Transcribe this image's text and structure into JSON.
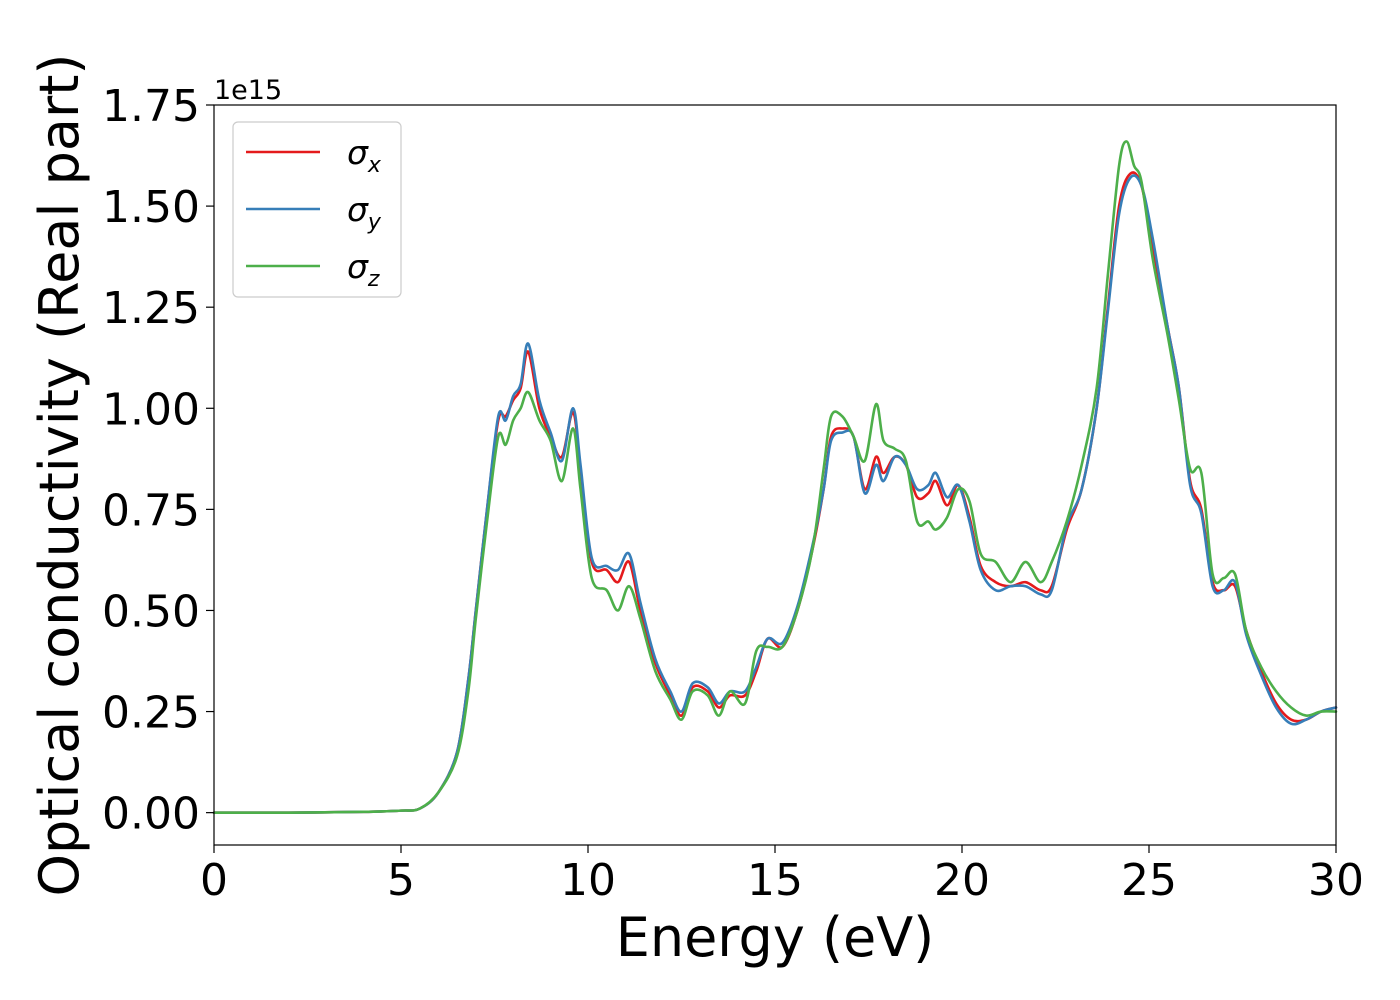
{
  "chart_data": {
    "type": "line",
    "title": "",
    "xlabel": "Energy (eV)",
    "ylabel": "Optical conductivity (Real part)",
    "y_offset_label": "1e15",
    "xlim": [
      0,
      30
    ],
    "ylim": [
      -0.08,
      1.75
    ],
    "xticks": [
      0,
      5,
      10,
      15,
      20,
      25,
      30
    ],
    "xtick_labels": [
      "0",
      "5",
      "10",
      "15",
      "20",
      "25",
      "30"
    ],
    "yticks": [
      0.0,
      0.25,
      0.5,
      0.75,
      1.0,
      1.25,
      1.5,
      1.75
    ],
    "ytick_labels": [
      "0.00",
      "0.25",
      "0.50",
      "0.75",
      "1.00",
      "1.25",
      "1.50",
      "1.75"
    ],
    "grid": false,
    "legend_position": "upper-left",
    "series": [
      {
        "name": "σx",
        "legend_base": "σ",
        "legend_sub": "x",
        "color": "#e41a1c",
        "points": [
          [
            0,
            0
          ],
          [
            2,
            0
          ],
          [
            4,
            0.002
          ],
          [
            5,
            0.005
          ],
          [
            5.5,
            0.01
          ],
          [
            6,
            0.05
          ],
          [
            6.5,
            0.15
          ],
          [
            6.8,
            0.33
          ],
          [
            7,
            0.5
          ],
          [
            7.3,
            0.75
          ],
          [
            7.6,
            0.97
          ],
          [
            7.8,
            0.98
          ],
          [
            8,
            1.02
          ],
          [
            8.2,
            1.05
          ],
          [
            8.4,
            1.14
          ],
          [
            8.7,
            1.0
          ],
          [
            9,
            0.93
          ],
          [
            9.3,
            0.88
          ],
          [
            9.6,
            0.99
          ],
          [
            9.8,
            0.85
          ],
          [
            10.1,
            0.62
          ],
          [
            10.5,
            0.6
          ],
          [
            10.8,
            0.57
          ],
          [
            11.1,
            0.62
          ],
          [
            11.4,
            0.5
          ],
          [
            11.8,
            0.37
          ],
          [
            12.2,
            0.29
          ],
          [
            12.5,
            0.24
          ],
          [
            12.8,
            0.31
          ],
          [
            13.2,
            0.3
          ],
          [
            13.5,
            0.26
          ],
          [
            13.8,
            0.29
          ],
          [
            14.2,
            0.29
          ],
          [
            14.5,
            0.35
          ],
          [
            14.8,
            0.43
          ],
          [
            15.2,
            0.41
          ],
          [
            15.6,
            0.5
          ],
          [
            16,
            0.65
          ],
          [
            16.3,
            0.8
          ],
          [
            16.5,
            0.93
          ],
          [
            16.8,
            0.95
          ],
          [
            17.1,
            0.93
          ],
          [
            17.4,
            0.8
          ],
          [
            17.7,
            0.88
          ],
          [
            17.9,
            0.84
          ],
          [
            18.2,
            0.88
          ],
          [
            18.5,
            0.86
          ],
          [
            18.8,
            0.78
          ],
          [
            19.1,
            0.79
          ],
          [
            19.3,
            0.82
          ],
          [
            19.6,
            0.76
          ],
          [
            19.9,
            0.81
          ],
          [
            20.2,
            0.73
          ],
          [
            20.5,
            0.61
          ],
          [
            20.9,
            0.57
          ],
          [
            21.3,
            0.56
          ],
          [
            21.7,
            0.57
          ],
          [
            22.1,
            0.55
          ],
          [
            22.4,
            0.56
          ],
          [
            22.8,
            0.7
          ],
          [
            23.2,
            0.8
          ],
          [
            23.6,
            1.0
          ],
          [
            23.9,
            1.25
          ],
          [
            24.2,
            1.5
          ],
          [
            24.5,
            1.58
          ],
          [
            24.8,
            1.55
          ],
          [
            25.1,
            1.4
          ],
          [
            25.5,
            1.2
          ],
          [
            25.8,
            1.05
          ],
          [
            26.1,
            0.82
          ],
          [
            26.4,
            0.75
          ],
          [
            26.7,
            0.57
          ],
          [
            27,
            0.55
          ],
          [
            27.3,
            0.56
          ],
          [
            27.6,
            0.45
          ],
          [
            28,
            0.35
          ],
          [
            28.4,
            0.27
          ],
          [
            28.8,
            0.23
          ],
          [
            29.2,
            0.23
          ],
          [
            29.6,
            0.25
          ],
          [
            30,
            0.26
          ]
        ]
      },
      {
        "name": "σy",
        "legend_base": "σ",
        "legend_sub": "y",
        "color": "#377eb8",
        "points": [
          [
            0,
            0
          ],
          [
            2,
            0
          ],
          [
            4,
            0.002
          ],
          [
            5,
            0.005
          ],
          [
            5.5,
            0.01
          ],
          [
            6,
            0.05
          ],
          [
            6.5,
            0.15
          ],
          [
            6.8,
            0.33
          ],
          [
            7,
            0.5
          ],
          [
            7.3,
            0.75
          ],
          [
            7.6,
            0.98
          ],
          [
            7.8,
            0.97
          ],
          [
            8,
            1.03
          ],
          [
            8.2,
            1.06
          ],
          [
            8.4,
            1.16
          ],
          [
            8.7,
            1.02
          ],
          [
            9,
            0.94
          ],
          [
            9.3,
            0.87
          ],
          [
            9.6,
            1.0
          ],
          [
            9.8,
            0.86
          ],
          [
            10.1,
            0.63
          ],
          [
            10.5,
            0.61
          ],
          [
            10.8,
            0.6
          ],
          [
            11.1,
            0.64
          ],
          [
            11.4,
            0.52
          ],
          [
            11.8,
            0.38
          ],
          [
            12.2,
            0.3
          ],
          [
            12.5,
            0.25
          ],
          [
            12.8,
            0.32
          ],
          [
            13.2,
            0.31
          ],
          [
            13.5,
            0.27
          ],
          [
            13.8,
            0.3
          ],
          [
            14.2,
            0.3
          ],
          [
            14.5,
            0.36
          ],
          [
            14.8,
            0.43
          ],
          [
            15.2,
            0.42
          ],
          [
            15.6,
            0.51
          ],
          [
            16,
            0.66
          ],
          [
            16.3,
            0.8
          ],
          [
            16.5,
            0.92
          ],
          [
            16.8,
            0.94
          ],
          [
            17.1,
            0.93
          ],
          [
            17.4,
            0.79
          ],
          [
            17.7,
            0.86
          ],
          [
            17.9,
            0.82
          ],
          [
            18.2,
            0.88
          ],
          [
            18.5,
            0.86
          ],
          [
            18.8,
            0.8
          ],
          [
            19.1,
            0.81
          ],
          [
            19.3,
            0.84
          ],
          [
            19.6,
            0.78
          ],
          [
            19.9,
            0.81
          ],
          [
            20.2,
            0.72
          ],
          [
            20.5,
            0.6
          ],
          [
            20.9,
            0.55
          ],
          [
            21.3,
            0.56
          ],
          [
            21.7,
            0.56
          ],
          [
            22.1,
            0.54
          ],
          [
            22.4,
            0.55
          ],
          [
            22.8,
            0.71
          ],
          [
            23.2,
            0.8
          ],
          [
            23.6,
            1.0
          ],
          [
            23.9,
            1.24
          ],
          [
            24.2,
            1.48
          ],
          [
            24.5,
            1.57
          ],
          [
            24.8,
            1.55
          ],
          [
            25.1,
            1.42
          ],
          [
            25.5,
            1.2
          ],
          [
            25.8,
            1.05
          ],
          [
            26.1,
            0.81
          ],
          [
            26.4,
            0.74
          ],
          [
            26.7,
            0.56
          ],
          [
            27,
            0.55
          ],
          [
            27.3,
            0.57
          ],
          [
            27.6,
            0.44
          ],
          [
            28,
            0.34
          ],
          [
            28.4,
            0.26
          ],
          [
            28.8,
            0.22
          ],
          [
            29.2,
            0.23
          ],
          [
            29.6,
            0.25
          ],
          [
            30,
            0.26
          ]
        ]
      },
      {
        "name": "σz",
        "legend_base": "σ",
        "legend_sub": "z",
        "color": "#4daf4a",
        "points": [
          [
            0,
            0
          ],
          [
            2,
            0
          ],
          [
            4,
            0.002
          ],
          [
            5,
            0.005
          ],
          [
            5.5,
            0.01
          ],
          [
            6,
            0.05
          ],
          [
            6.5,
            0.14
          ],
          [
            6.8,
            0.3
          ],
          [
            7,
            0.48
          ],
          [
            7.3,
            0.72
          ],
          [
            7.6,
            0.93
          ],
          [
            7.8,
            0.91
          ],
          [
            8,
            0.97
          ],
          [
            8.2,
            1.0
          ],
          [
            8.4,
            1.04
          ],
          [
            8.7,
            0.97
          ],
          [
            9,
            0.92
          ],
          [
            9.3,
            0.82
          ],
          [
            9.6,
            0.95
          ],
          [
            9.8,
            0.8
          ],
          [
            10.1,
            0.58
          ],
          [
            10.5,
            0.55
          ],
          [
            10.8,
            0.5
          ],
          [
            11.1,
            0.56
          ],
          [
            11.4,
            0.48
          ],
          [
            11.8,
            0.35
          ],
          [
            12.2,
            0.28
          ],
          [
            12.5,
            0.23
          ],
          [
            12.8,
            0.3
          ],
          [
            13.2,
            0.29
          ],
          [
            13.5,
            0.24
          ],
          [
            13.8,
            0.3
          ],
          [
            14.2,
            0.27
          ],
          [
            14.5,
            0.4
          ],
          [
            14.8,
            0.41
          ],
          [
            15.2,
            0.41
          ],
          [
            15.6,
            0.5
          ],
          [
            16,
            0.65
          ],
          [
            16.3,
            0.85
          ],
          [
            16.5,
            0.98
          ],
          [
            16.8,
            0.98
          ],
          [
            17.1,
            0.93
          ],
          [
            17.4,
            0.87
          ],
          [
            17.7,
            1.01
          ],
          [
            17.9,
            0.92
          ],
          [
            18.2,
            0.9
          ],
          [
            18.5,
            0.87
          ],
          [
            18.8,
            0.72
          ],
          [
            19.1,
            0.72
          ],
          [
            19.3,
            0.7
          ],
          [
            19.6,
            0.73
          ],
          [
            19.9,
            0.8
          ],
          [
            20.2,
            0.77
          ],
          [
            20.5,
            0.64
          ],
          [
            20.9,
            0.62
          ],
          [
            21.3,
            0.57
          ],
          [
            21.7,
            0.62
          ],
          [
            22.1,
            0.57
          ],
          [
            22.4,
            0.62
          ],
          [
            22.8,
            0.72
          ],
          [
            23.2,
            0.86
          ],
          [
            23.6,
            1.05
          ],
          [
            23.9,
            1.33
          ],
          [
            24.2,
            1.6
          ],
          [
            24.4,
            1.66
          ],
          [
            24.6,
            1.6
          ],
          [
            24.8,
            1.56
          ],
          [
            25.1,
            1.37
          ],
          [
            25.5,
            1.18
          ],
          [
            25.8,
            1.02
          ],
          [
            26.1,
            0.85
          ],
          [
            26.4,
            0.84
          ],
          [
            26.7,
            0.59
          ],
          [
            27,
            0.58
          ],
          [
            27.3,
            0.59
          ],
          [
            27.6,
            0.45
          ],
          [
            28,
            0.36
          ],
          [
            28.4,
            0.3
          ],
          [
            28.8,
            0.26
          ],
          [
            29.2,
            0.24
          ],
          [
            29.6,
            0.25
          ],
          [
            30,
            0.25
          ]
        ]
      }
    ]
  }
}
